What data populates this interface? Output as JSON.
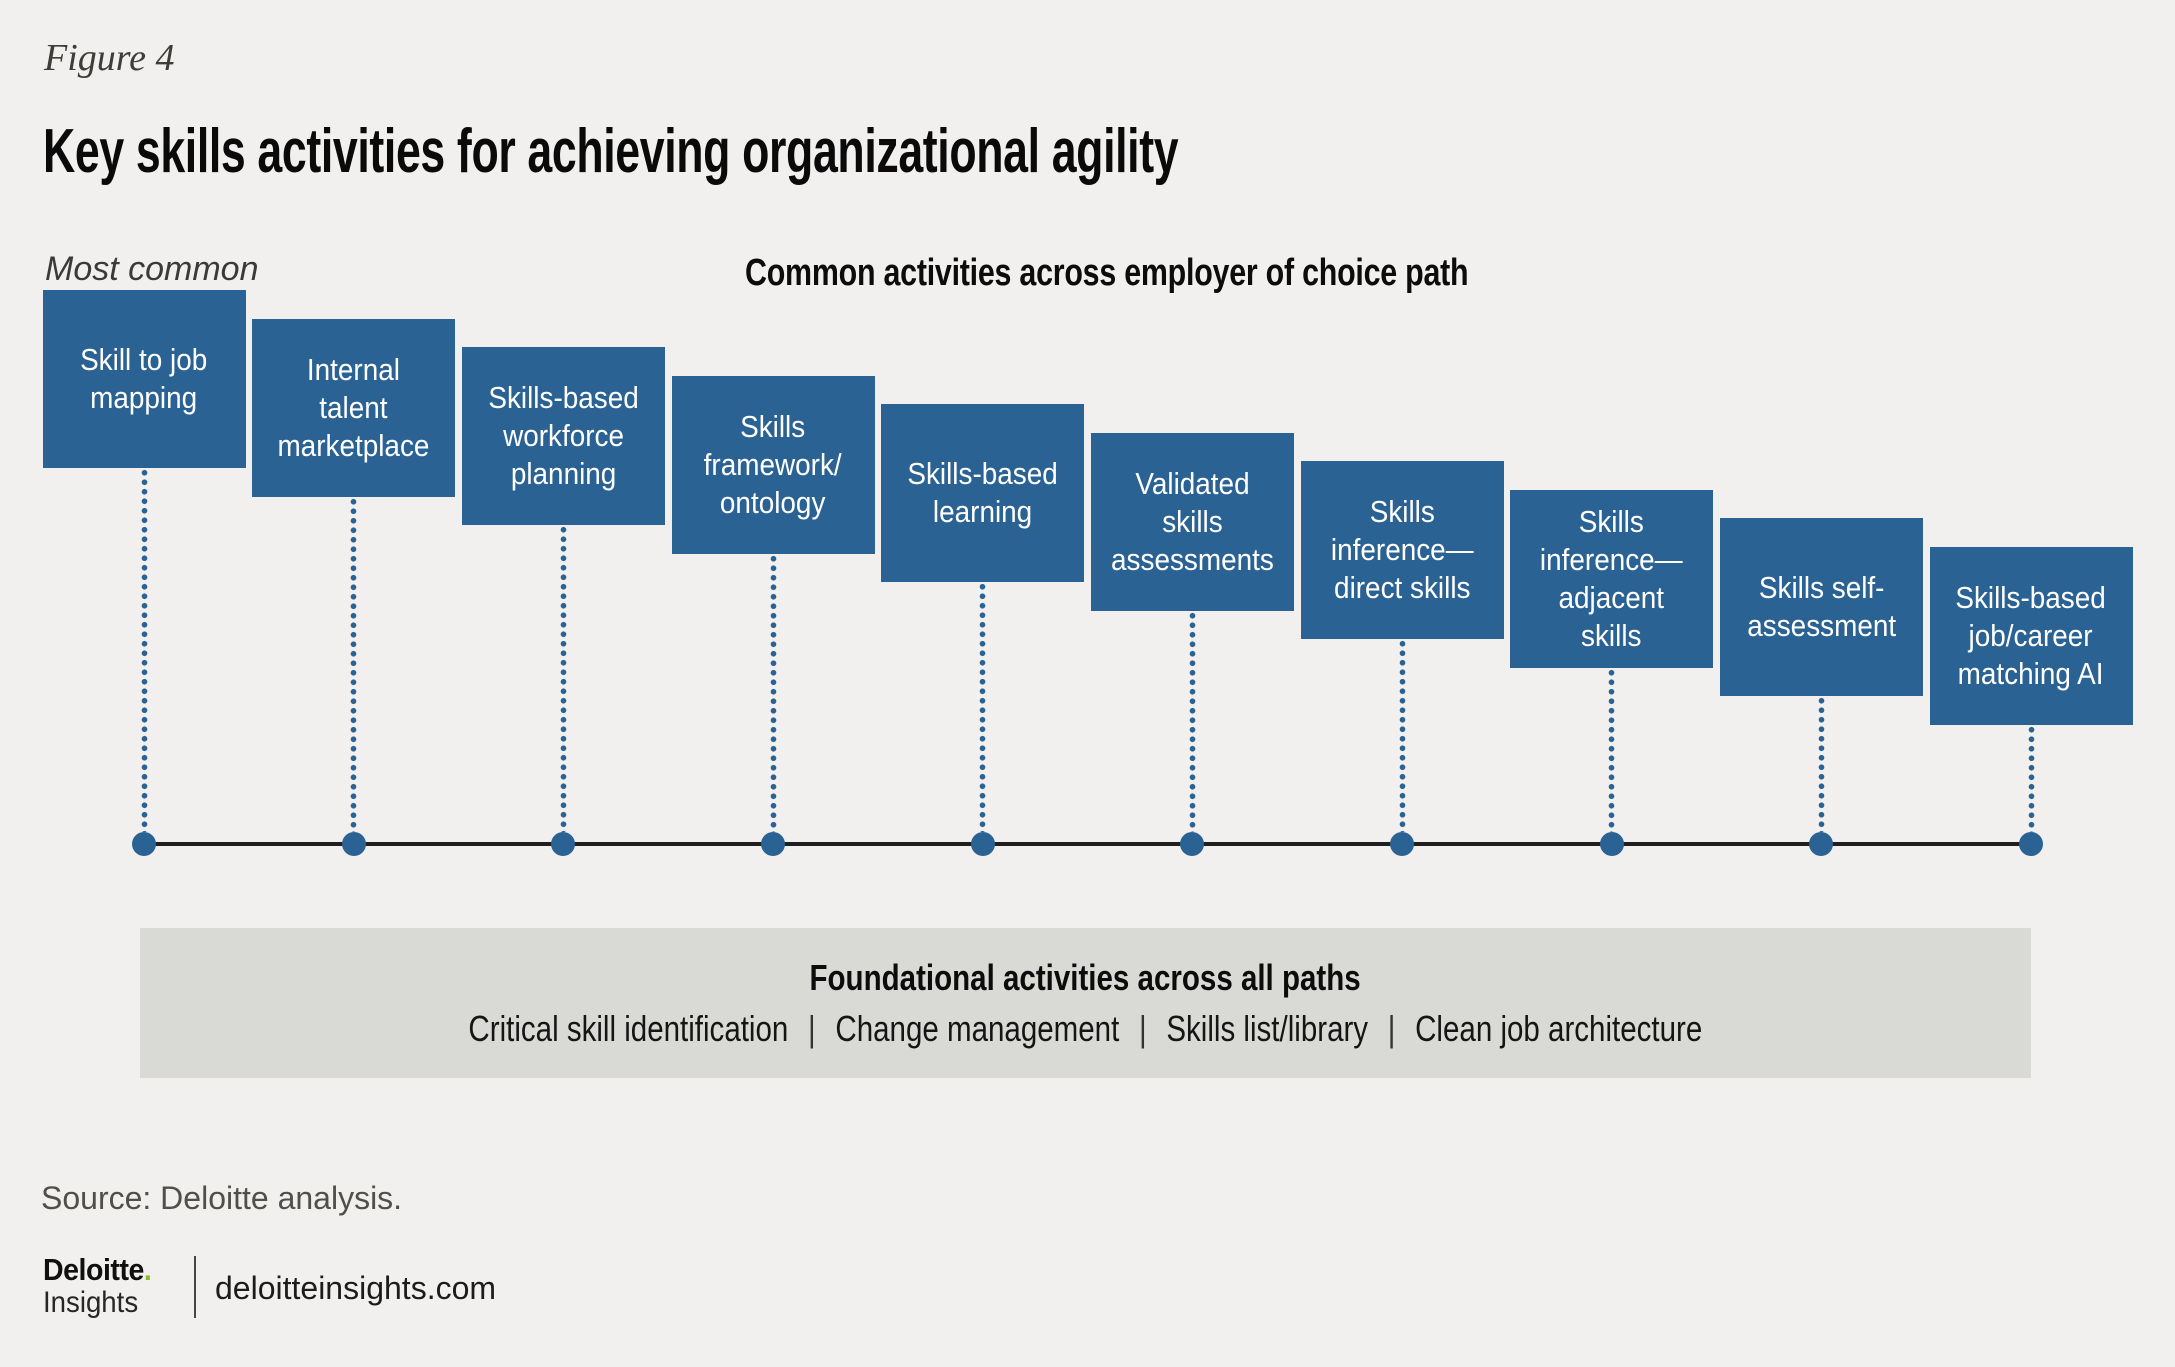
{
  "figure_label": "Figure 4",
  "title": "Key skills activities for achieving organizational agility",
  "axis": {
    "most_common_label": "Most common",
    "common_path_label": "Common activities across employer of choice path"
  },
  "activities": [
    {
      "label": "Skill to job\nmapping"
    },
    {
      "label": "Internal\ntalent\nmarketplace"
    },
    {
      "label": "Skills-based\nworkforce\nplanning"
    },
    {
      "label": "Skills\nframework/\nontology"
    },
    {
      "label": "Skills-based\nlearning"
    },
    {
      "label": "Validated\nskills\nassessments"
    },
    {
      "label": "Skills\ninference—\ndirect skills"
    },
    {
      "label": "Skills\ninference—\nadjacent\nskills"
    },
    {
      "label": "Skills self-\nassessment"
    },
    {
      "label": "Skills-based\njob/career\nmatching AI"
    }
  ],
  "foundation": {
    "title": "Foundational activities across all paths",
    "items": [
      "Critical skill identification",
      "Change management",
      "Skills list/library",
      "Clean job architecture"
    ],
    "separator": "|"
  },
  "source": "Source: Deloitte analysis.",
  "footer": {
    "brand": "Deloitte",
    "brand_dot": ".",
    "brand_sub": "Insights",
    "site": "deloitteinsights.com"
  },
  "colors": {
    "box_blue": "#2b6294",
    "accent_green": "#86bc25",
    "panel_gray": "#d9d9d5",
    "background": "#f1f0ee",
    "timeline": "#1f1f1d"
  }
}
